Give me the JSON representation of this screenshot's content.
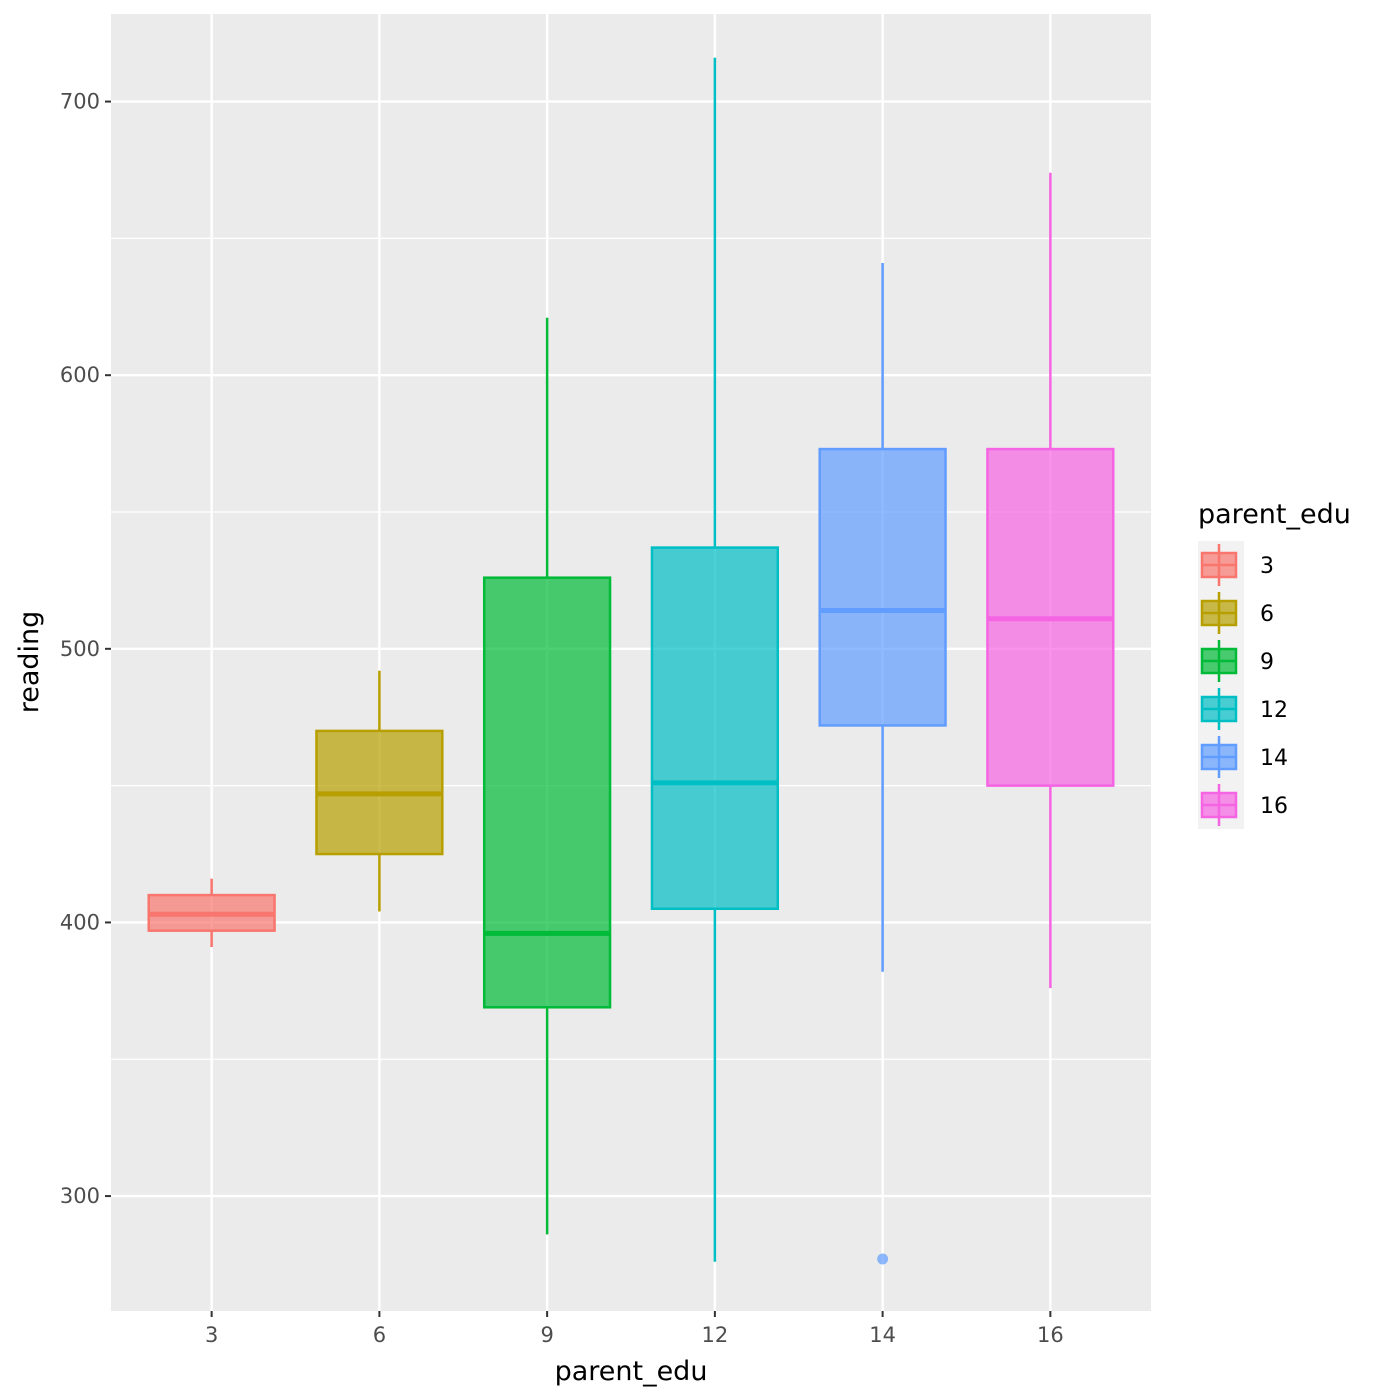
{
  "chart_data": {
    "type": "boxplot",
    "title": "",
    "xlabel": "parent_edu",
    "ylabel": "reading",
    "ylim": [
      258,
      732
    ],
    "yticks": [
      300,
      400,
      500,
      600,
      700
    ],
    "grid": true,
    "legend": {
      "title": "parent_edu",
      "position": "right"
    },
    "categories": [
      "3",
      "6",
      "9",
      "12",
      "14",
      "16"
    ],
    "series": [
      {
        "name": "3",
        "color": "#F8766D",
        "whisker_low": 391,
        "q1": 397,
        "median": 403,
        "q3": 410,
        "whisker_high": 416,
        "outliers": []
      },
      {
        "name": "6",
        "color": "#B79F00",
        "whisker_low": 404,
        "q1": 425,
        "median": 447,
        "q3": 470,
        "whisker_high": 492,
        "outliers": []
      },
      {
        "name": "9",
        "color": "#00BA38",
        "whisker_low": 286,
        "q1": 369,
        "median": 396,
        "q3": 526,
        "whisker_high": 621,
        "outliers": []
      },
      {
        "name": "12",
        "color": "#00BFC4",
        "whisker_low": 276,
        "q1": 405,
        "median": 451,
        "q3": 537,
        "whisker_high": 716,
        "outliers": []
      },
      {
        "name": "14",
        "color": "#619CFF",
        "whisker_low": 382,
        "q1": 472,
        "median": 514,
        "q3": 573,
        "whisker_high": 641,
        "outliers": [
          277
        ]
      },
      {
        "name": "16",
        "color": "#F564E3",
        "whisker_low": 376,
        "q1": 450,
        "median": 511,
        "q3": 573,
        "whisker_high": 674,
        "outliers": []
      }
    ]
  }
}
